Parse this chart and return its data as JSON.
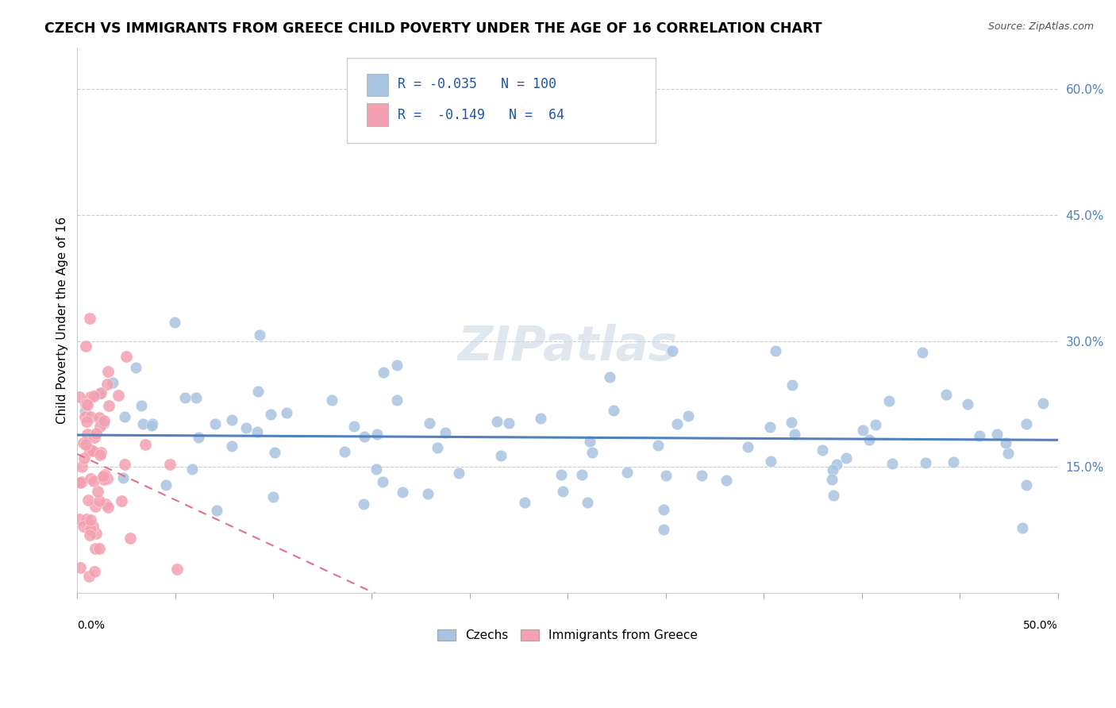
{
  "title": "CZECH VS IMMIGRANTS FROM GREECE CHILD POVERTY UNDER THE AGE OF 16 CORRELATION CHART",
  "source": "Source: ZipAtlas.com",
  "ylabel": "Child Poverty Under the Age of 16",
  "xmin": 0.0,
  "xmax": 0.5,
  "ymin": 0.0,
  "ymax": 0.65,
  "czech_color": "#a8c4e0",
  "greek_color": "#f4a0b0",
  "czech_line_color": "#4f81bd",
  "greek_line_color": "#e07090",
  "r_czech": -0.035,
  "n_czech": 100,
  "r_greek": -0.149,
  "n_greek": 64,
  "y_ticks": [
    0.0,
    0.15,
    0.3,
    0.45,
    0.6
  ],
  "legend_text_color": "#2255aa"
}
